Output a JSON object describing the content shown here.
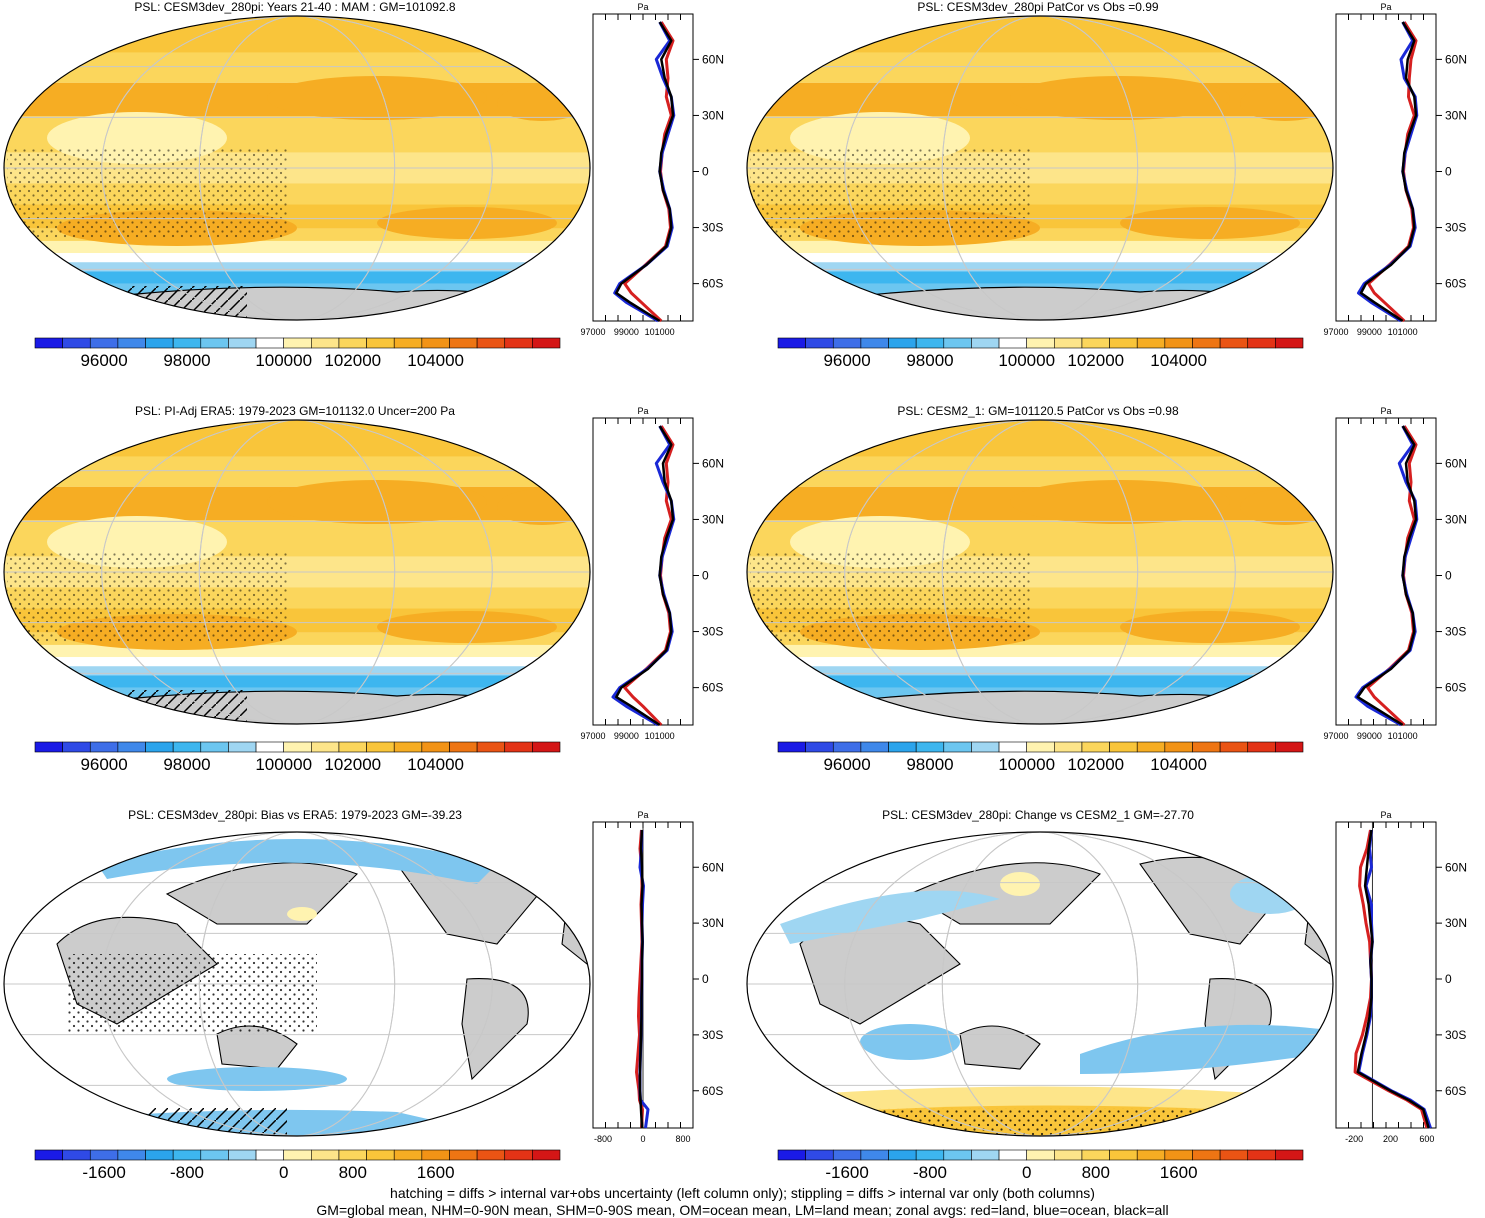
{
  "figure": {
    "footnote_line1": "hatching = diffs > internal var+obs uncertainty (left column only); stippling = diffs > internal var only (both columns)",
    "footnote_line2": "GM=global mean, NHM=0-90N mean, SHM=0-90S mean, OM=ocean mean, LM=land mean; zonal avgs: red=land, blue=ocean, black=all"
  },
  "colors": {
    "land": "#d62020",
    "ocean": "#1a28d6",
    "all": "#000000",
    "landmask": "#cccccc",
    "grid": "#c8c8c8"
  },
  "chart_data": [
    {
      "type": "heatmap",
      "id": "r1c1",
      "title": "PSL: CESM3dev_280pi: Years 21-40 : MAM : GM=101092.8",
      "style": "abs",
      "colorbar": {
        "ticks": [
          "96000",
          "98000",
          "100000",
          "102000",
          "104000"
        ]
      },
      "colors": [
        "#1a1ae6",
        "#2f4ae6",
        "#3e6ee8",
        "#3f88ea",
        "#2ba4ec",
        "#3db6ef",
        "#6cc6f0",
        "#9fd6f2",
        "#ffffff",
        "#fff3b0",
        "#fde58a",
        "#fbd65c",
        "#f9c53a",
        "#f6ad23",
        "#f29316",
        "#ee7513",
        "#ea5414",
        "#e33316",
        "#d41616"
      ],
      "zonal": {
        "ylabel_unit": "Pa",
        "xticks": [
          "97000",
          "99000",
          "101000"
        ],
        "lat_labels": [
          "60N",
          "30N",
          "0",
          "30S",
          "60S"
        ],
        "xmin": 97000,
        "xmax": 103000,
        "lat": [
          80,
          70,
          60,
          50,
          40,
          30,
          20,
          10,
          0,
          -10,
          -20,
          -30,
          -40,
          -50,
          -60,
          -65,
          -70,
          -80
        ],
        "all": [
          101000,
          101700,
          101100,
          101300,
          101700,
          101800,
          101400,
          101100,
          101000,
          101200,
          101600,
          101700,
          101400,
          100200,
          98700,
          98400,
          99200,
          101000
        ],
        "land": [
          101100,
          101800,
          101400,
          101500,
          101400,
          101700,
          101300,
          101150,
          101050,
          101200,
          101550,
          101650,
          101350,
          100150,
          98900,
          99300,
          99900,
          101100
        ],
        "ocean": [
          101000,
          101600,
          100800,
          101200,
          101700,
          101850,
          101500,
          101150,
          101000,
          101250,
          101600,
          101750,
          101450,
          100200,
          98600,
          98300,
          99000,
          100900
        ]
      }
    },
    {
      "type": "heatmap",
      "id": "r1c2",
      "title": "PSL: CESM3dev_280pi PatCor vs Obs =0.99",
      "style": "abs",
      "colorbar": {
        "ticks": [
          "96000",
          "98000",
          "100000",
          "102000",
          "104000"
        ]
      },
      "colors": [
        "#1a1ae6",
        "#2f4ae6",
        "#3e6ee8",
        "#3f88ea",
        "#2ba4ec",
        "#3db6ef",
        "#6cc6f0",
        "#9fd6f2",
        "#ffffff",
        "#fff3b0",
        "#fde58a",
        "#fbd65c",
        "#f9c53a",
        "#f6ad23",
        "#f29316",
        "#ee7513",
        "#ea5414",
        "#e33316",
        "#d41616"
      ],
      "zonal": {
        "ylabel_unit": "Pa",
        "xticks": [
          "97000",
          "99000",
          "101000"
        ],
        "lat_labels": [
          "60N",
          "30N",
          "0",
          "30S",
          "60S"
        ],
        "xmin": 97000,
        "xmax": 103000,
        "lat": [
          80,
          70,
          60,
          50,
          40,
          30,
          20,
          10,
          0,
          -10,
          -20,
          -30,
          -40,
          -50,
          -60,
          -65,
          -70,
          -80
        ],
        "all": [
          101000,
          101700,
          101300,
          101200,
          101700,
          101800,
          101400,
          101100,
          101000,
          101200,
          101600,
          101700,
          101400,
          100300,
          98800,
          98500,
          99300,
          101000
        ],
        "land": [
          101100,
          101800,
          101500,
          101400,
          101350,
          101700,
          101300,
          101150,
          101050,
          101200,
          101550,
          101650,
          101350,
          100200,
          98950,
          99300,
          99900,
          101100
        ],
        "ocean": [
          101000,
          101600,
          100900,
          101100,
          101750,
          101850,
          101500,
          101150,
          101000,
          101250,
          101600,
          101750,
          101450,
          100250,
          98700,
          98350,
          99100,
          100900
        ]
      }
    },
    {
      "type": "heatmap",
      "id": "r2c1",
      "title": "PSL: PI-Adj ERA5: 1979-2023 GM=101132.0 Uncer=200 Pa",
      "style": "abs",
      "colorbar": {
        "ticks": [
          "96000",
          "98000",
          "100000",
          "102000",
          "104000"
        ]
      },
      "colors": [
        "#1a1ae6",
        "#2f4ae6",
        "#3e6ee8",
        "#3f88ea",
        "#2ba4ec",
        "#3db6ef",
        "#6cc6f0",
        "#9fd6f2",
        "#ffffff",
        "#fff3b0",
        "#fde58a",
        "#fbd65c",
        "#f9c53a",
        "#f6ad23",
        "#f29316",
        "#ee7513",
        "#ea5414",
        "#e33316",
        "#d41616"
      ],
      "zonal": {
        "ylabel_unit": "Pa",
        "xticks": [
          "97000",
          "99000",
          "101000"
        ],
        "lat_labels": [
          "60N",
          "30N",
          "0",
          "30S",
          "60S"
        ],
        "xmin": 97000,
        "xmax": 103000,
        "lat": [
          80,
          70,
          60,
          50,
          40,
          30,
          20,
          10,
          0,
          -10,
          -20,
          -30,
          -40,
          -50,
          -60,
          -65,
          -70,
          -80
        ],
        "all": [
          101000,
          101700,
          101200,
          101300,
          101700,
          101800,
          101400,
          101100,
          101000,
          101200,
          101600,
          101700,
          101400,
          100300,
          98700,
          98400,
          99300,
          101000
        ],
        "land": [
          101100,
          101800,
          101400,
          101500,
          101400,
          101700,
          101300,
          101150,
          101050,
          101200,
          101550,
          101650,
          101350,
          100200,
          98900,
          99400,
          100000,
          101100
        ],
        "ocean": [
          101000,
          101600,
          100800,
          101200,
          101700,
          101850,
          101500,
          101150,
          101000,
          101250,
          101600,
          101750,
          101450,
          100250,
          98600,
          98200,
          99000,
          100900
        ]
      }
    },
    {
      "type": "heatmap",
      "id": "r2c2",
      "title": "PSL: CESM2_1: GM=101120.5 PatCor vs Obs =0.98",
      "style": "abs",
      "colorbar": {
        "ticks": [
          "96000",
          "98000",
          "100000",
          "102000",
          "104000"
        ]
      },
      "colors": [
        "#1a1ae6",
        "#2f4ae6",
        "#3e6ee8",
        "#3f88ea",
        "#2ba4ec",
        "#3db6ef",
        "#6cc6f0",
        "#9fd6f2",
        "#ffffff",
        "#fff3b0",
        "#fde58a",
        "#fbd65c",
        "#f9c53a",
        "#f6ad23",
        "#f29316",
        "#ee7513",
        "#ea5414",
        "#e33316",
        "#d41616"
      ],
      "zonal": {
        "ylabel_unit": "Pa",
        "xticks": [
          "97000",
          "99000",
          "101000"
        ],
        "lat_labels": [
          "60N",
          "30N",
          "0",
          "30S",
          "60S"
        ],
        "xmin": 97000,
        "xmax": 103000,
        "lat": [
          80,
          70,
          60,
          50,
          40,
          30,
          20,
          10,
          0,
          -10,
          -20,
          -30,
          -40,
          -50,
          -60,
          -65,
          -70,
          -80
        ],
        "all": [
          101000,
          101700,
          101200,
          101300,
          101700,
          101800,
          101400,
          101100,
          101000,
          101200,
          101600,
          101700,
          101400,
          100300,
          98700,
          98300,
          99200,
          101000
        ],
        "land": [
          101100,
          101800,
          101400,
          101500,
          101400,
          101700,
          101300,
          101150,
          101050,
          101200,
          101550,
          101650,
          101350,
          100200,
          98900,
          99300,
          99900,
          101100
        ],
        "ocean": [
          101000,
          101600,
          100800,
          101200,
          101750,
          101850,
          101500,
          101150,
          101000,
          101250,
          101600,
          101750,
          101450,
          100250,
          98600,
          98200,
          98900,
          100900
        ]
      }
    },
    {
      "type": "heatmap",
      "id": "r3c1",
      "title": "PSL: CESM3dev_280pi: Bias vs ERA5: 1979-2023 GM=-39.23",
      "style": "diff",
      "colorbar": {
        "ticks": [
          "-1600",
          "-800",
          "0",
          "800",
          "1600"
        ]
      },
      "colors": [
        "#1a1ae6",
        "#2f4ae6",
        "#3e6ee8",
        "#3f88ea",
        "#2ba4ec",
        "#3db6ef",
        "#6cc6f0",
        "#9fd6f2",
        "#ffffff",
        "#fff3b0",
        "#fde58a",
        "#fbd65c",
        "#f9c53a",
        "#f6ad23",
        "#f29316",
        "#ee7513",
        "#ea5414",
        "#e33316",
        "#d41616"
      ],
      "zonal": {
        "ylabel_unit": "Pa",
        "xticks": [
          "-800",
          "0",
          "800"
        ],
        "lat_labels": [
          "60N",
          "30N",
          "0",
          "30S",
          "60S"
        ],
        "xmin": -1000,
        "xmax": 1000,
        "lat": [
          80,
          70,
          60,
          50,
          40,
          30,
          20,
          10,
          0,
          -10,
          -20,
          -30,
          -40,
          -50,
          -60,
          -65,
          -70,
          -80
        ],
        "all": [
          -20,
          -40,
          -20,
          -10,
          -30,
          -20,
          -10,
          -20,
          -20,
          -30,
          -30,
          -40,
          -50,
          -60,
          -60,
          -50,
          -40,
          -20
        ],
        "land": [
          -30,
          -60,
          -30,
          -20,
          -40,
          -30,
          -20,
          -40,
          -60,
          -80,
          -90,
          -70,
          -100,
          -130,
          -80,
          -70,
          -10,
          -30
        ],
        "ocean": [
          -20,
          -30,
          -60,
          10,
          -10,
          -20,
          -10,
          -20,
          -20,
          -30,
          -30,
          -40,
          -50,
          -60,
          -60,
          -50,
          100,
          50
        ]
      }
    },
    {
      "type": "heatmap",
      "id": "r3c2",
      "title": "PSL: CESM3dev_280pi: Change vs CESM2_1 GM=-27.70",
      "style": "diff",
      "colorbar": {
        "ticks": [
          "-1600",
          "-800",
          "0",
          "800",
          "1600"
        ]
      },
      "colors": [
        "#1a1ae6",
        "#2f4ae6",
        "#3e6ee8",
        "#3f88ea",
        "#2ba4ec",
        "#3db6ef",
        "#6cc6f0",
        "#9fd6f2",
        "#ffffff",
        "#fff3b0",
        "#fde58a",
        "#fbd65c",
        "#f9c53a",
        "#f6ad23",
        "#f29316",
        "#ee7513",
        "#ea5414",
        "#e33316",
        "#d41616"
      ],
      "zonal": {
        "ylabel_unit": "Pa",
        "xticks": [
          "-200",
          "200",
          "600"
        ],
        "lat_labels": [
          "60N",
          "30N",
          "0",
          "30S",
          "60S"
        ],
        "xmin": -400,
        "xmax": 700,
        "lat": [
          80,
          70,
          60,
          50,
          40,
          30,
          20,
          10,
          0,
          -10,
          -20,
          -30,
          -40,
          -50,
          -60,
          -65,
          -70,
          -80
        ],
        "all": [
          -10,
          -40,
          -60,
          -80,
          -40,
          -20,
          0,
          -20,
          -10,
          -10,
          -30,
          -70,
          -120,
          -160,
          200,
          400,
          560,
          620
        ],
        "land": [
          -20,
          -60,
          -130,
          -140,
          -100,
          -70,
          -30,
          -20,
          -10,
          -20,
          -60,
          -110,
          -180,
          -190,
          180,
          380,
          540,
          600
        ],
        "ocean": [
          -10,
          -30,
          -10,
          -70,
          -10,
          -10,
          0,
          -20,
          -10,
          -10,
          -20,
          -60,
          -110,
          -150,
          210,
          420,
          570,
          640
        ]
      }
    }
  ]
}
